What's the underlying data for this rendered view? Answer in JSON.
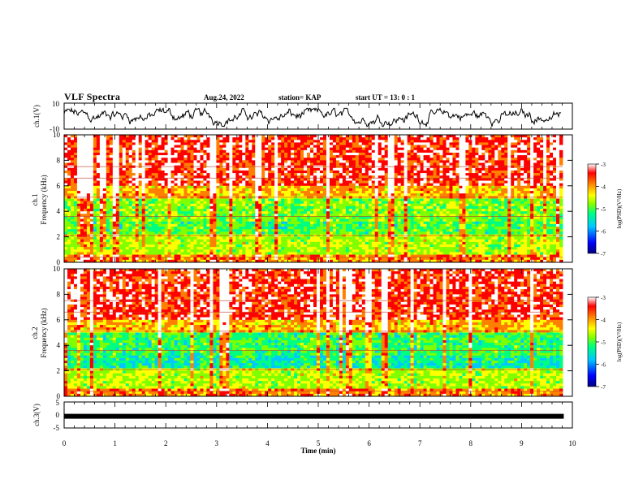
{
  "header": {
    "title": "VLF Spectra",
    "date": "Aug.24, 2022",
    "station": "station= KAP",
    "start": "start  UT  =   13: 0  : 1"
  },
  "chart_data": [
    {
      "type": "line",
      "name": "ch1-waveform",
      "ylabel": "ch.1(V)",
      "ylim": [
        -10,
        10
      ],
      "ytick_labels": [
        "10",
        "-10"
      ],
      "xlim": [
        0,
        10
      ],
      "note_shape": "noisy waveform fluctuating between about -8 and 6 V"
    },
    {
      "type": "heatmap",
      "name": "ch1-spectrogram",
      "ylabel": "ch.1\nFrequency (kHz)",
      "ylim": [
        0,
        10
      ],
      "yticks": [
        0,
        2,
        4,
        6,
        8,
        10
      ],
      "ytick_labels": [
        "0",
        "2",
        "4",
        "6",
        "8",
        "10"
      ],
      "xlim": [
        0,
        9.83
      ],
      "colorbar": {
        "label": "log(PSD)(V²/Hz)",
        "range": [
          -7,
          -3
        ],
        "ticks": [
          "-3",
          "-4",
          "-5",
          "-6",
          "-7"
        ],
        "colors": [
          "#000080",
          "#0000ff",
          "#00c8ff",
          "#00ff80",
          "#80ff00",
          "#ffff00",
          "#ff8000",
          "#ff0000",
          "#ffffff"
        ]
      }
    },
    {
      "type": "heatmap",
      "name": "ch2-spectrogram",
      "ylabel": "ch.2\nFrequency (kHz)",
      "ylim": [
        0,
        10
      ],
      "yticks": [
        0,
        2,
        4,
        6,
        8,
        10
      ],
      "ytick_labels": [
        "0",
        "2",
        "4",
        "6",
        "8",
        "10"
      ],
      "xlim": [
        0,
        9.83
      ],
      "colorbar": {
        "label": "log(PSD)(V²/Hz)",
        "range": [
          -7,
          -3
        ],
        "ticks": [
          "-3",
          "-4",
          "-5",
          "-6",
          "-7"
        ],
        "colors": [
          "#000080",
          "#0000ff",
          "#00c8ff",
          "#00ff80",
          "#80ff00",
          "#ffff00",
          "#ff8000",
          "#ff0000",
          "#ffffff"
        ]
      }
    },
    {
      "type": "line",
      "name": "ch3-signal",
      "ylabel": "ch.3(V)",
      "ylim": [
        -5,
        5
      ],
      "ytick_labels": [
        "5",
        "0",
        "-5"
      ],
      "x": [
        0,
        9.83
      ],
      "y": [
        -0.5,
        -0.5
      ],
      "xlabel": "Time (min)",
      "xlim": [
        0,
        10
      ],
      "xticks": [
        0,
        1,
        2,
        3,
        4,
        5,
        6,
        7,
        8,
        9,
        10
      ],
      "xtick_labels": [
        "0",
        "1",
        "2",
        "3",
        "4",
        "5",
        "6",
        "7",
        "8",
        "9",
        "10"
      ]
    }
  ]
}
